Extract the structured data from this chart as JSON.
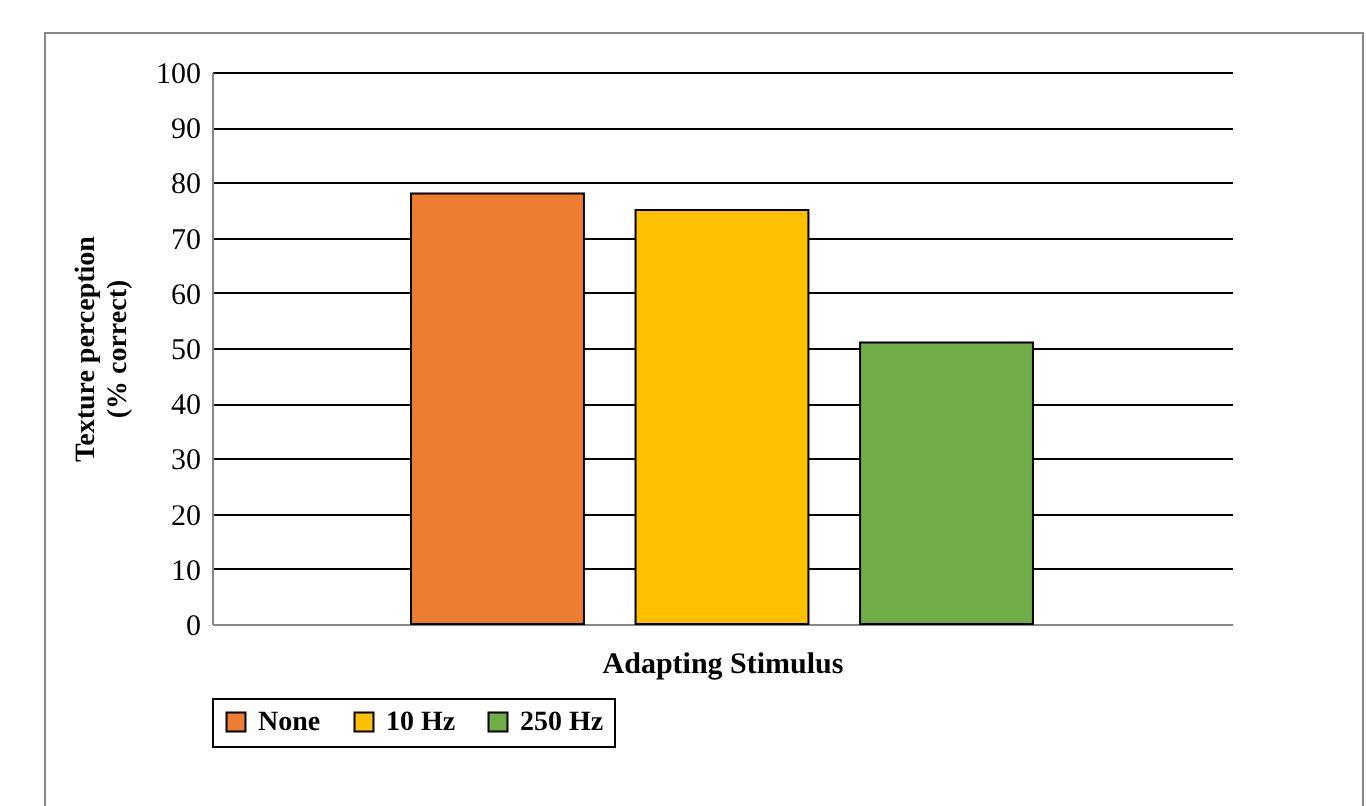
{
  "chart_data": {
    "type": "bar",
    "xlabel": "Adapting Stimulus",
    "ylabel": "Texture perception\n(% correct)",
    "categories": [
      null
    ],
    "series": [
      {
        "name": "None",
        "color": "#ed7d31",
        "values": [
          78
        ]
      },
      {
        "name": "10 Hz",
        "color": "#ffc000",
        "values": [
          75
        ]
      },
      {
        "name": "250 Hz",
        "color": "#70ad47",
        "values": [
          51
        ]
      }
    ],
    "ylim": [
      0,
      100
    ],
    "yticks": [
      0,
      10,
      20,
      30,
      40,
      50,
      60,
      70,
      80,
      90,
      100
    ],
    "grid": "y",
    "legend": "bottom",
    "tick_labels": "y"
  }
}
